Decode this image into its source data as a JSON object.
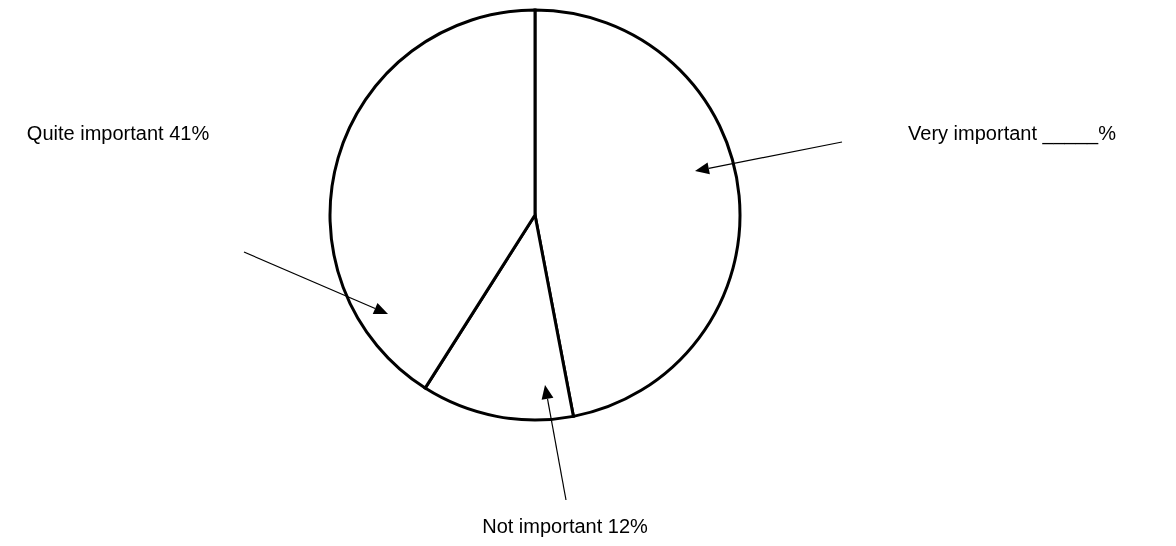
{
  "chart_data": {
    "type": "pie",
    "categories": [
      "Very important",
      "Not important",
      "Quite important"
    ],
    "values": [
      47,
      12,
      41
    ],
    "value_labels": [
      "_____%",
      "12%",
      "41%"
    ],
    "colors": [
      "#ffffff",
      "#ffffff",
      "#ffffff"
    ]
  }
}
